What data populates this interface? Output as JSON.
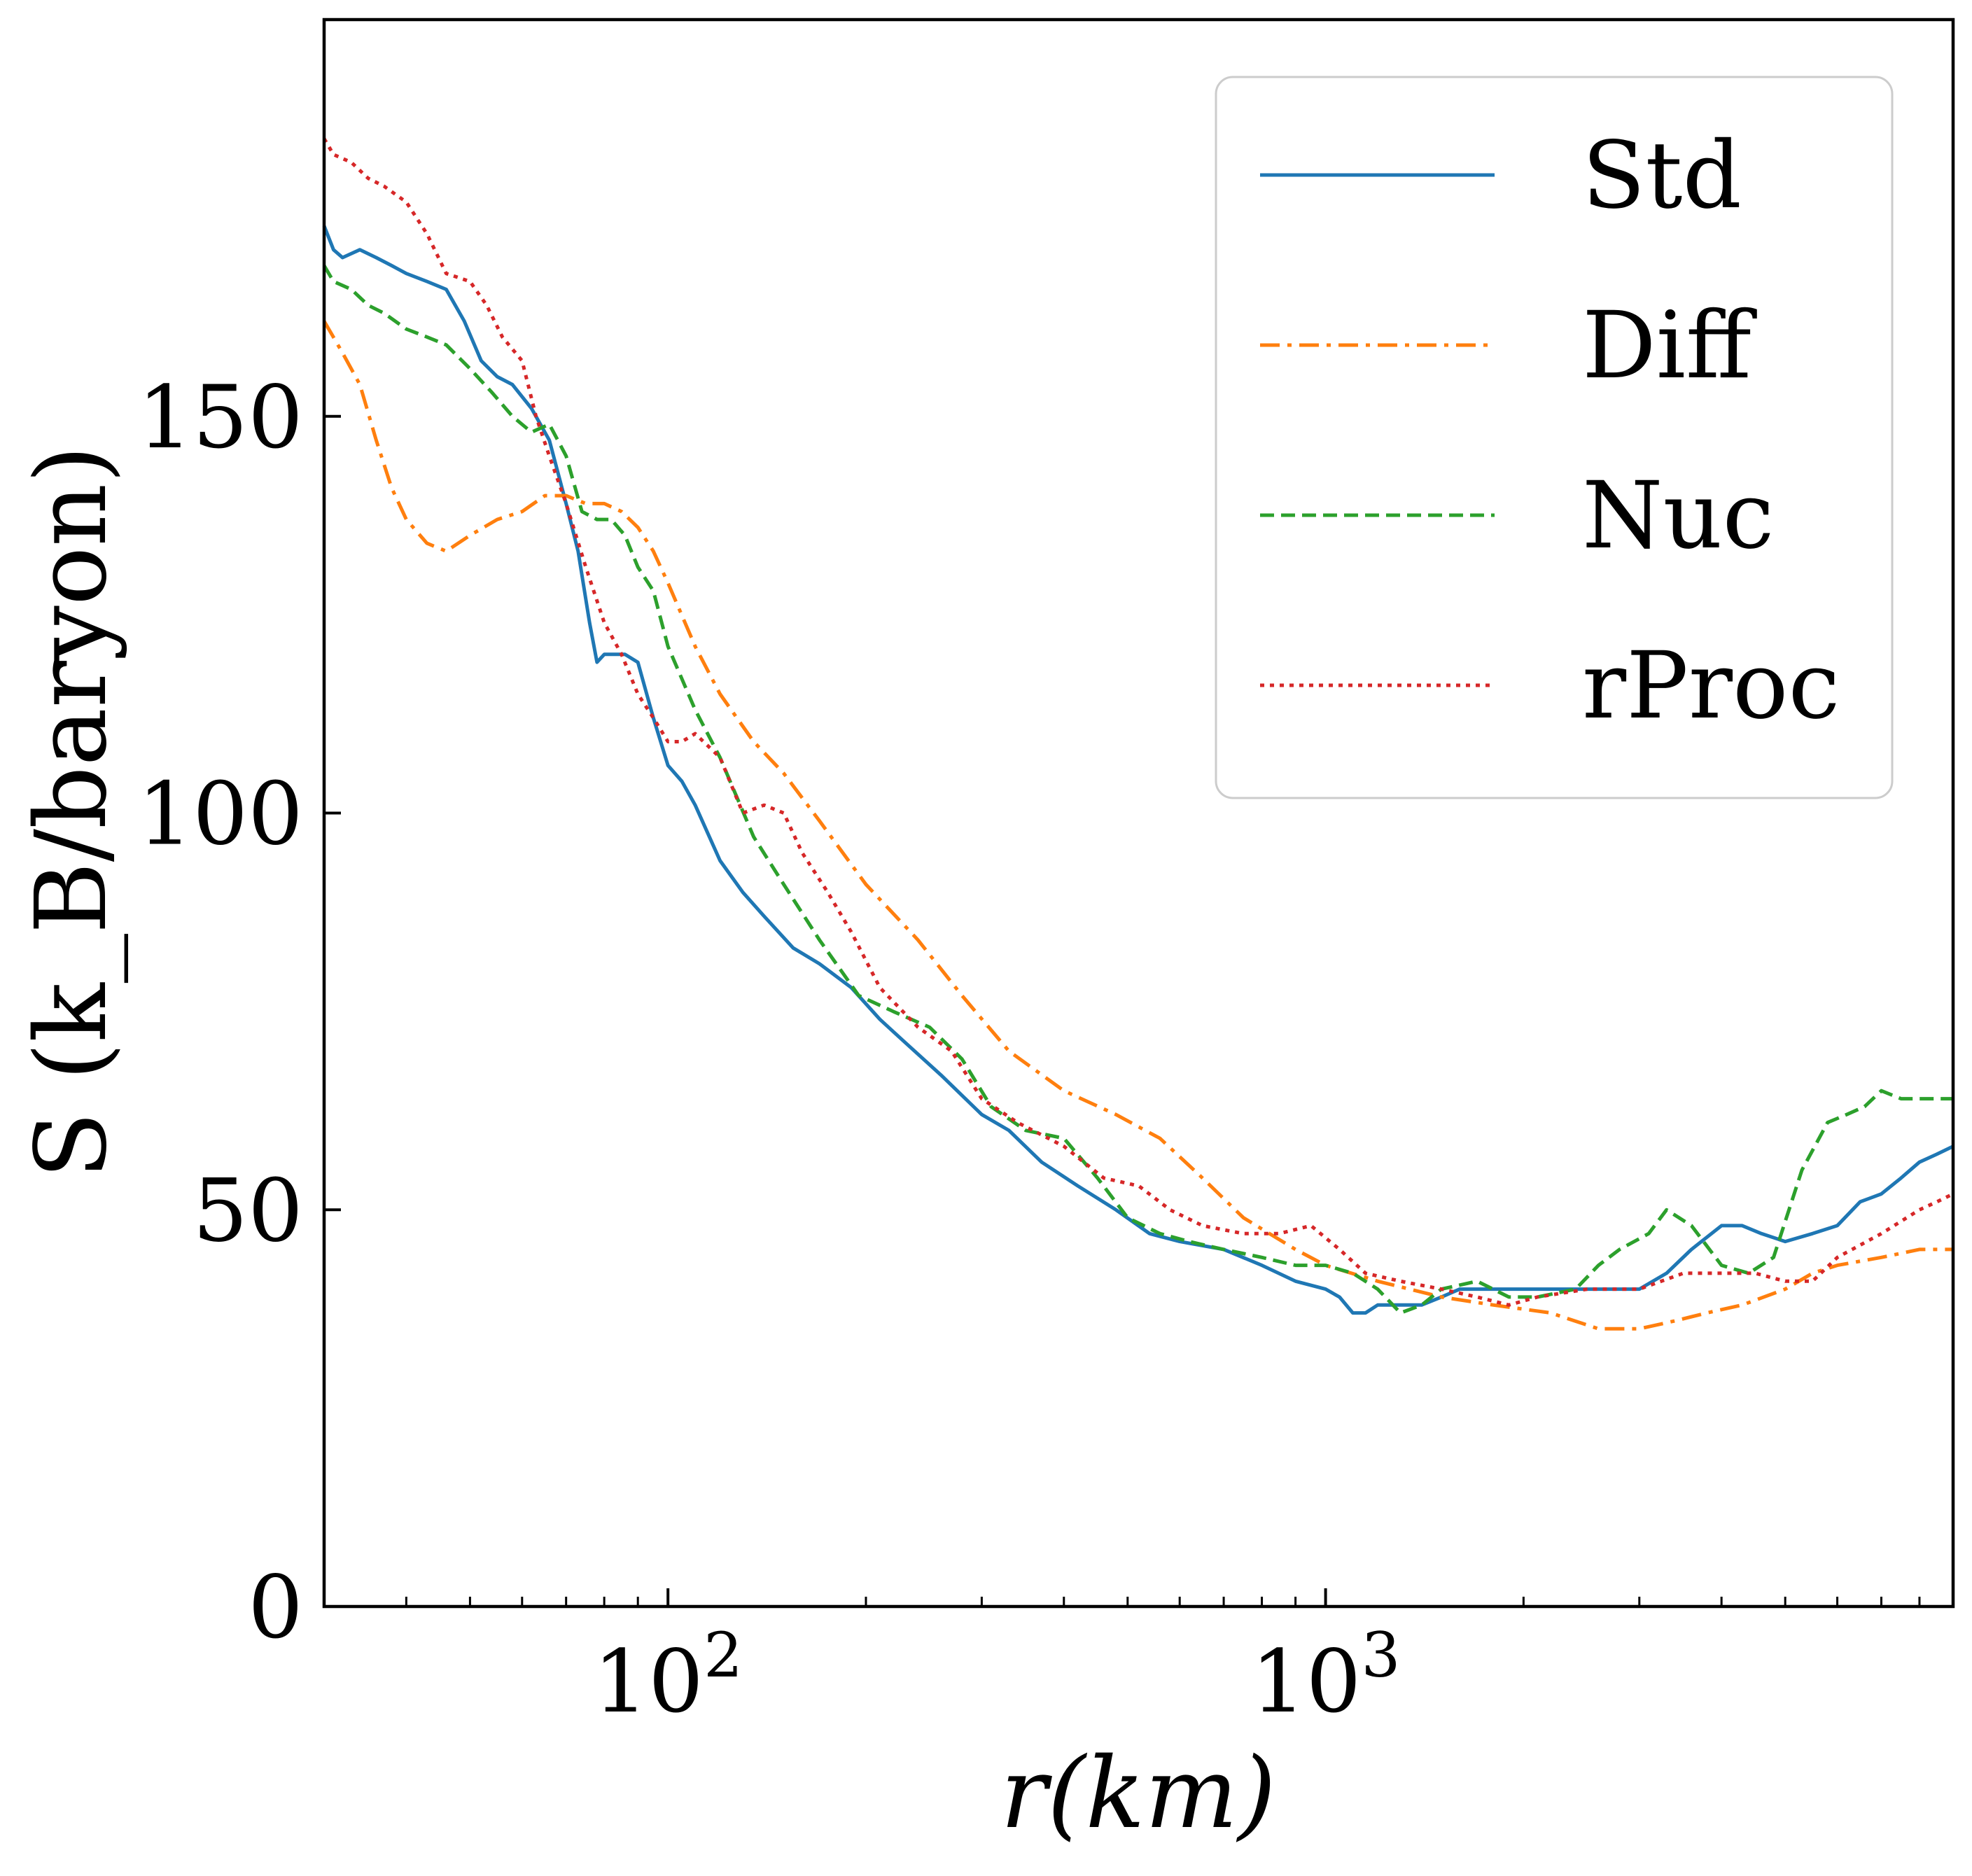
{
  "chart_data": {
    "type": "line",
    "title": "",
    "xlabel": "r(km)",
    "ylabel": "S (k_B/baryon)",
    "xscale": "log",
    "xlim": [
      30,
      9000
    ],
    "ylim": [
      0,
      200
    ],
    "xticks": [
      {
        "value": 100,
        "base": "10",
        "exp": "2"
      },
      {
        "value": 1000,
        "base": "10",
        "exp": "3"
      }
    ],
    "yticks": [
      0,
      50,
      100,
      150
    ],
    "ytick_labels": [
      "0",
      "50",
      "100",
      "150"
    ],
    "grid": false,
    "legend": "top-right",
    "colors": {
      "Std": "#1f77b4",
      "Diff": "#ff7f0e",
      "Nuc": "#2ca02c",
      "rProc": "#d62728"
    },
    "series": [
      {
        "name": "Std",
        "style": "solid",
        "x": [
          30,
          31,
          32,
          34,
          36,
          38,
          40,
          43,
          46,
          49,
          52,
          55,
          58,
          62,
          66,
          70,
          73,
          76,
          78,
          80,
          83,
          86,
          90,
          95,
          100,
          105,
          110,
          120,
          130,
          140,
          155,
          170,
          190,
          210,
          230,
          260,
          300,
          330,
          370,
          420,
          480,
          540,
          600,
          700,
          800,
          900,
          1000,
          1050,
          1100,
          1150,
          1200,
          1300,
          1400,
          1500,
          1600,
          1800,
          2000,
          2300,
          2700,
          3000,
          3300,
          3600,
          4000,
          4300,
          4600,
          5000,
          5500,
          6000,
          6500,
          7000,
          7500,
          8000,
          8500,
          9000
        ],
        "y": [
          174,
          171,
          170,
          171,
          170,
          169,
          168,
          167,
          166,
          162,
          157,
          155,
          154,
          151,
          147,
          139,
          133,
          124,
          119,
          120,
          120,
          120,
          119,
          112,
          106,
          104,
          101,
          94,
          90,
          87,
          83,
          81,
          78,
          74,
          71,
          67,
          62,
          60,
          56,
          53,
          50,
          47,
          46,
          45,
          43,
          41,
          40,
          39,
          37,
          37,
          38,
          38,
          38,
          39,
          40,
          40,
          40,
          40,
          40,
          40,
          42,
          45,
          48,
          48,
          47,
          46,
          47,
          48,
          51,
          52,
          54,
          56,
          57,
          58
        ]
      },
      {
        "name": "Diff",
        "style": "dashdot",
        "x": [
          30,
          32,
          34,
          36,
          38,
          40,
          43,
          46,
          50,
          55,
          60,
          65,
          70,
          75,
          80,
          85,
          90,
          95,
          100,
          110,
          120,
          135,
          150,
          170,
          200,
          240,
          280,
          330,
          400,
          480,
          560,
          650,
          750,
          900,
          1000,
          1200,
          1500,
          1800,
          2200,
          2600,
          3000,
          3400,
          3800,
          4300,
          5000,
          5500,
          6000,
          7000,
          8000,
          9000
        ],
        "y": [
          162,
          158,
          154,
          147,
          141,
          137,
          134,
          133,
          135,
          137,
          138,
          140,
          140,
          139,
          139,
          138,
          136,
          133,
          129,
          121,
          115,
          109,
          105,
          99,
          91,
          84,
          77,
          70,
          65,
          62,
          59,
          54,
          49,
          45,
          43,
          41,
          39,
          38,
          37,
          35,
          35,
          36,
          37,
          38,
          40,
          42,
          43,
          44,
          45,
          45
        ]
      },
      {
        "name": "Nuc",
        "style": "dashed",
        "x": [
          30,
          31,
          33,
          35,
          37,
          40,
          43,
          46,
          50,
          54,
          58,
          62,
          66,
          70,
          74,
          78,
          82,
          86,
          90,
          95,
          100,
          110,
          120,
          135,
          150,
          170,
          195,
          220,
          250,
          280,
          310,
          350,
          400,
          450,
          500,
          560,
          620,
          700,
          800,
          900,
          1000,
          1100,
          1200,
          1300,
          1400,
          1500,
          1700,
          1900,
          2100,
          2400,
          2600,
          2800,
          3100,
          3300,
          3600,
          4000,
          4400,
          4800,
          5300,
          5800,
          6200,
          6600,
          7000,
          7500,
          8000,
          8500,
          9000
        ],
        "y": [
          169,
          167,
          166,
          164,
          163,
          161,
          160,
          159,
          156,
          153,
          150,
          148,
          149,
          145,
          138,
          137,
          137,
          135,
          131,
          128,
          121,
          113,
          107,
          97,
          91,
          84,
          77,
          75,
          73,
          69,
          63,
          60,
          59,
          54,
          49,
          47,
          46,
          45,
          44,
          43,
          43,
          42,
          40,
          37,
          38,
          40,
          41,
          39,
          39,
          40,
          43,
          45,
          47,
          50,
          48,
          43,
          42,
          44,
          55,
          61,
          62,
          63,
          65,
          64,
          64,
          64,
          64
        ]
      },
      {
        "name": "rProc",
        "style": "dotted",
        "x": [
          30,
          31,
          33,
          35,
          37,
          40,
          43,
          46,
          50,
          53,
          56,
          60,
          63,
          66,
          70,
          75,
          80,
          85,
          90,
          95,
          100,
          105,
          110,
          120,
          130,
          140,
          150,
          160,
          175,
          190,
          210,
          240,
          270,
          300,
          340,
          400,
          460,
          520,
          580,
          650,
          750,
          850,
          950,
          1050,
          1150,
          1300,
          1500,
          1700,
          1900,
          2100,
          2500,
          3000,
          3500,
          4000,
          4500,
          5000,
          5500,
          6000,
          7000,
          8000,
          8500,
          9000
        ],
        "y": [
          185,
          183,
          182,
          180,
          179,
          177,
          173,
          168,
          167,
          164,
          160,
          157,
          150,
          145,
          139,
          131,
          124,
          120,
          115,
          112,
          109,
          109,
          110,
          107,
          100,
          101,
          100,
          95,
          90,
          85,
          78,
          73,
          70,
          64,
          61,
          58,
          54,
          53,
          50,
          48,
          47,
          47,
          48,
          45,
          42,
          41,
          40,
          39,
          38,
          39,
          40,
          40,
          42,
          42,
          42,
          41,
          41,
          44,
          47,
          50,
          51,
          52
        ]
      }
    ]
  }
}
